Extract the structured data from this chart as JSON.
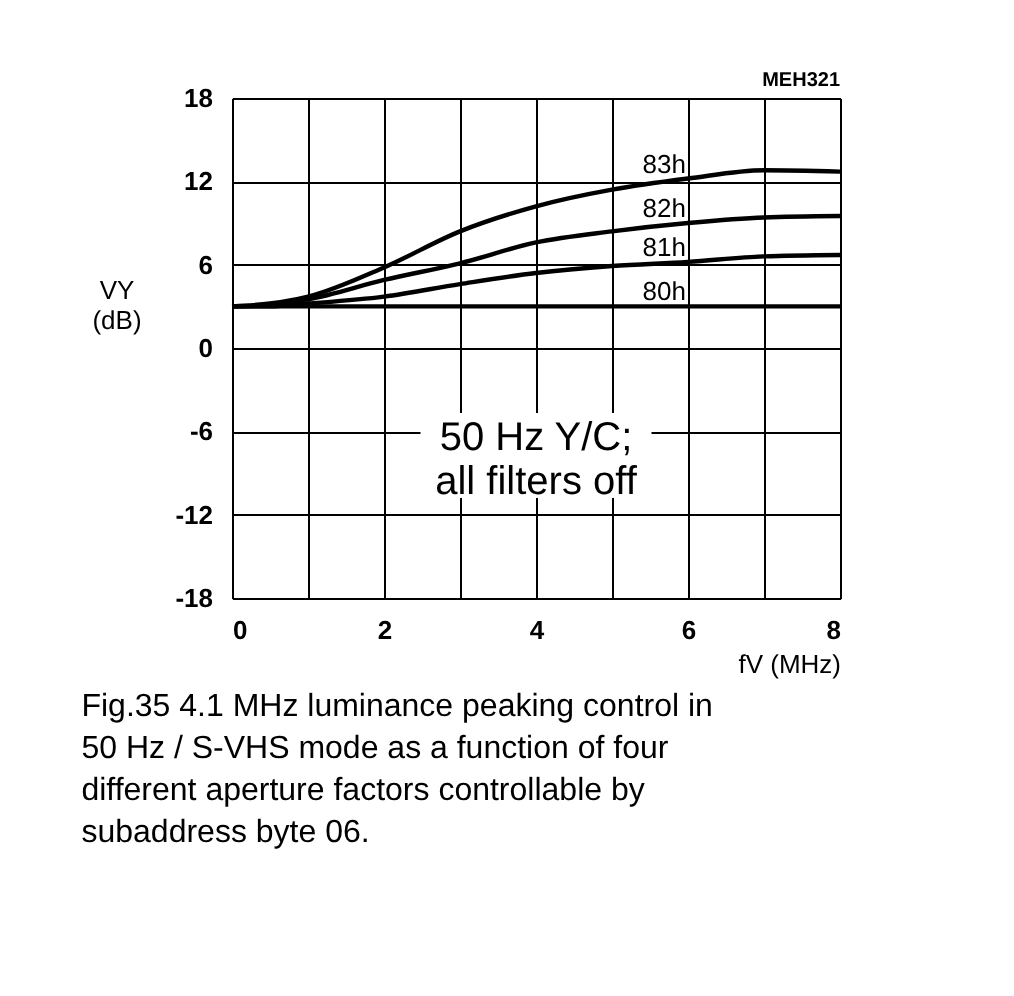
{
  "chart_data": {
    "type": "line",
    "xlabel": "fV (MHz)",
    "ylabel": "VY (dB)",
    "x": [
      0,
      0.5,
      1,
      2,
      3,
      4,
      5,
      6,
      7,
      8
    ],
    "series": [
      {
        "name": "83h",
        "color": "#000000",
        "values": [
          3.0,
          3.2,
          3.7,
          5.8,
          8.4,
          10.2,
          11.4,
          12.2,
          12.8,
          12.7
        ]
      },
      {
        "name": "82h",
        "color": "#000000",
        "values": [
          3.0,
          3.1,
          3.5,
          4.9,
          6.1,
          7.6,
          8.4,
          9.0,
          9.4,
          9.5
        ]
      },
      {
        "name": "81h",
        "color": "#000000",
        "values": [
          3.0,
          3.0,
          3.2,
          3.7,
          4.6,
          5.4,
          5.9,
          6.2,
          6.6,
          6.7
        ]
      },
      {
        "name": "80h",
        "color": "#000000",
        "values": [
          3.0,
          3.0,
          3.0,
          3.0,
          3.0,
          3.0,
          3.0,
          3.0,
          3.0,
          3.0
        ]
      }
    ],
    "xlim": [
      0,
      8
    ],
    "ylim": [
      -18,
      18
    ],
    "xticks": [
      0,
      {
        "value": 1,
        "label": null
      },
      2,
      {
        "value": 3,
        "label": null
      },
      4,
      {
        "value": 5,
        "label": null
      },
      6,
      {
        "value": 7,
        "label": null
      },
      8
    ],
    "yticks": [
      -18,
      -12,
      -6,
      0,
      6,
      12,
      18
    ],
    "grid": true,
    "legend": false,
    "marker": "none",
    "line_style": "solid",
    "annotations": [
      "MEH321",
      "50 Hz Y/C;\nall filters off",
      "Fig.35  4.1 MHz luminance peaking control in\n            50 Hz / S-VHS mode as a function of four\n            different aperture factors controllable by\n            subaddress byte 06."
    ]
  }
}
